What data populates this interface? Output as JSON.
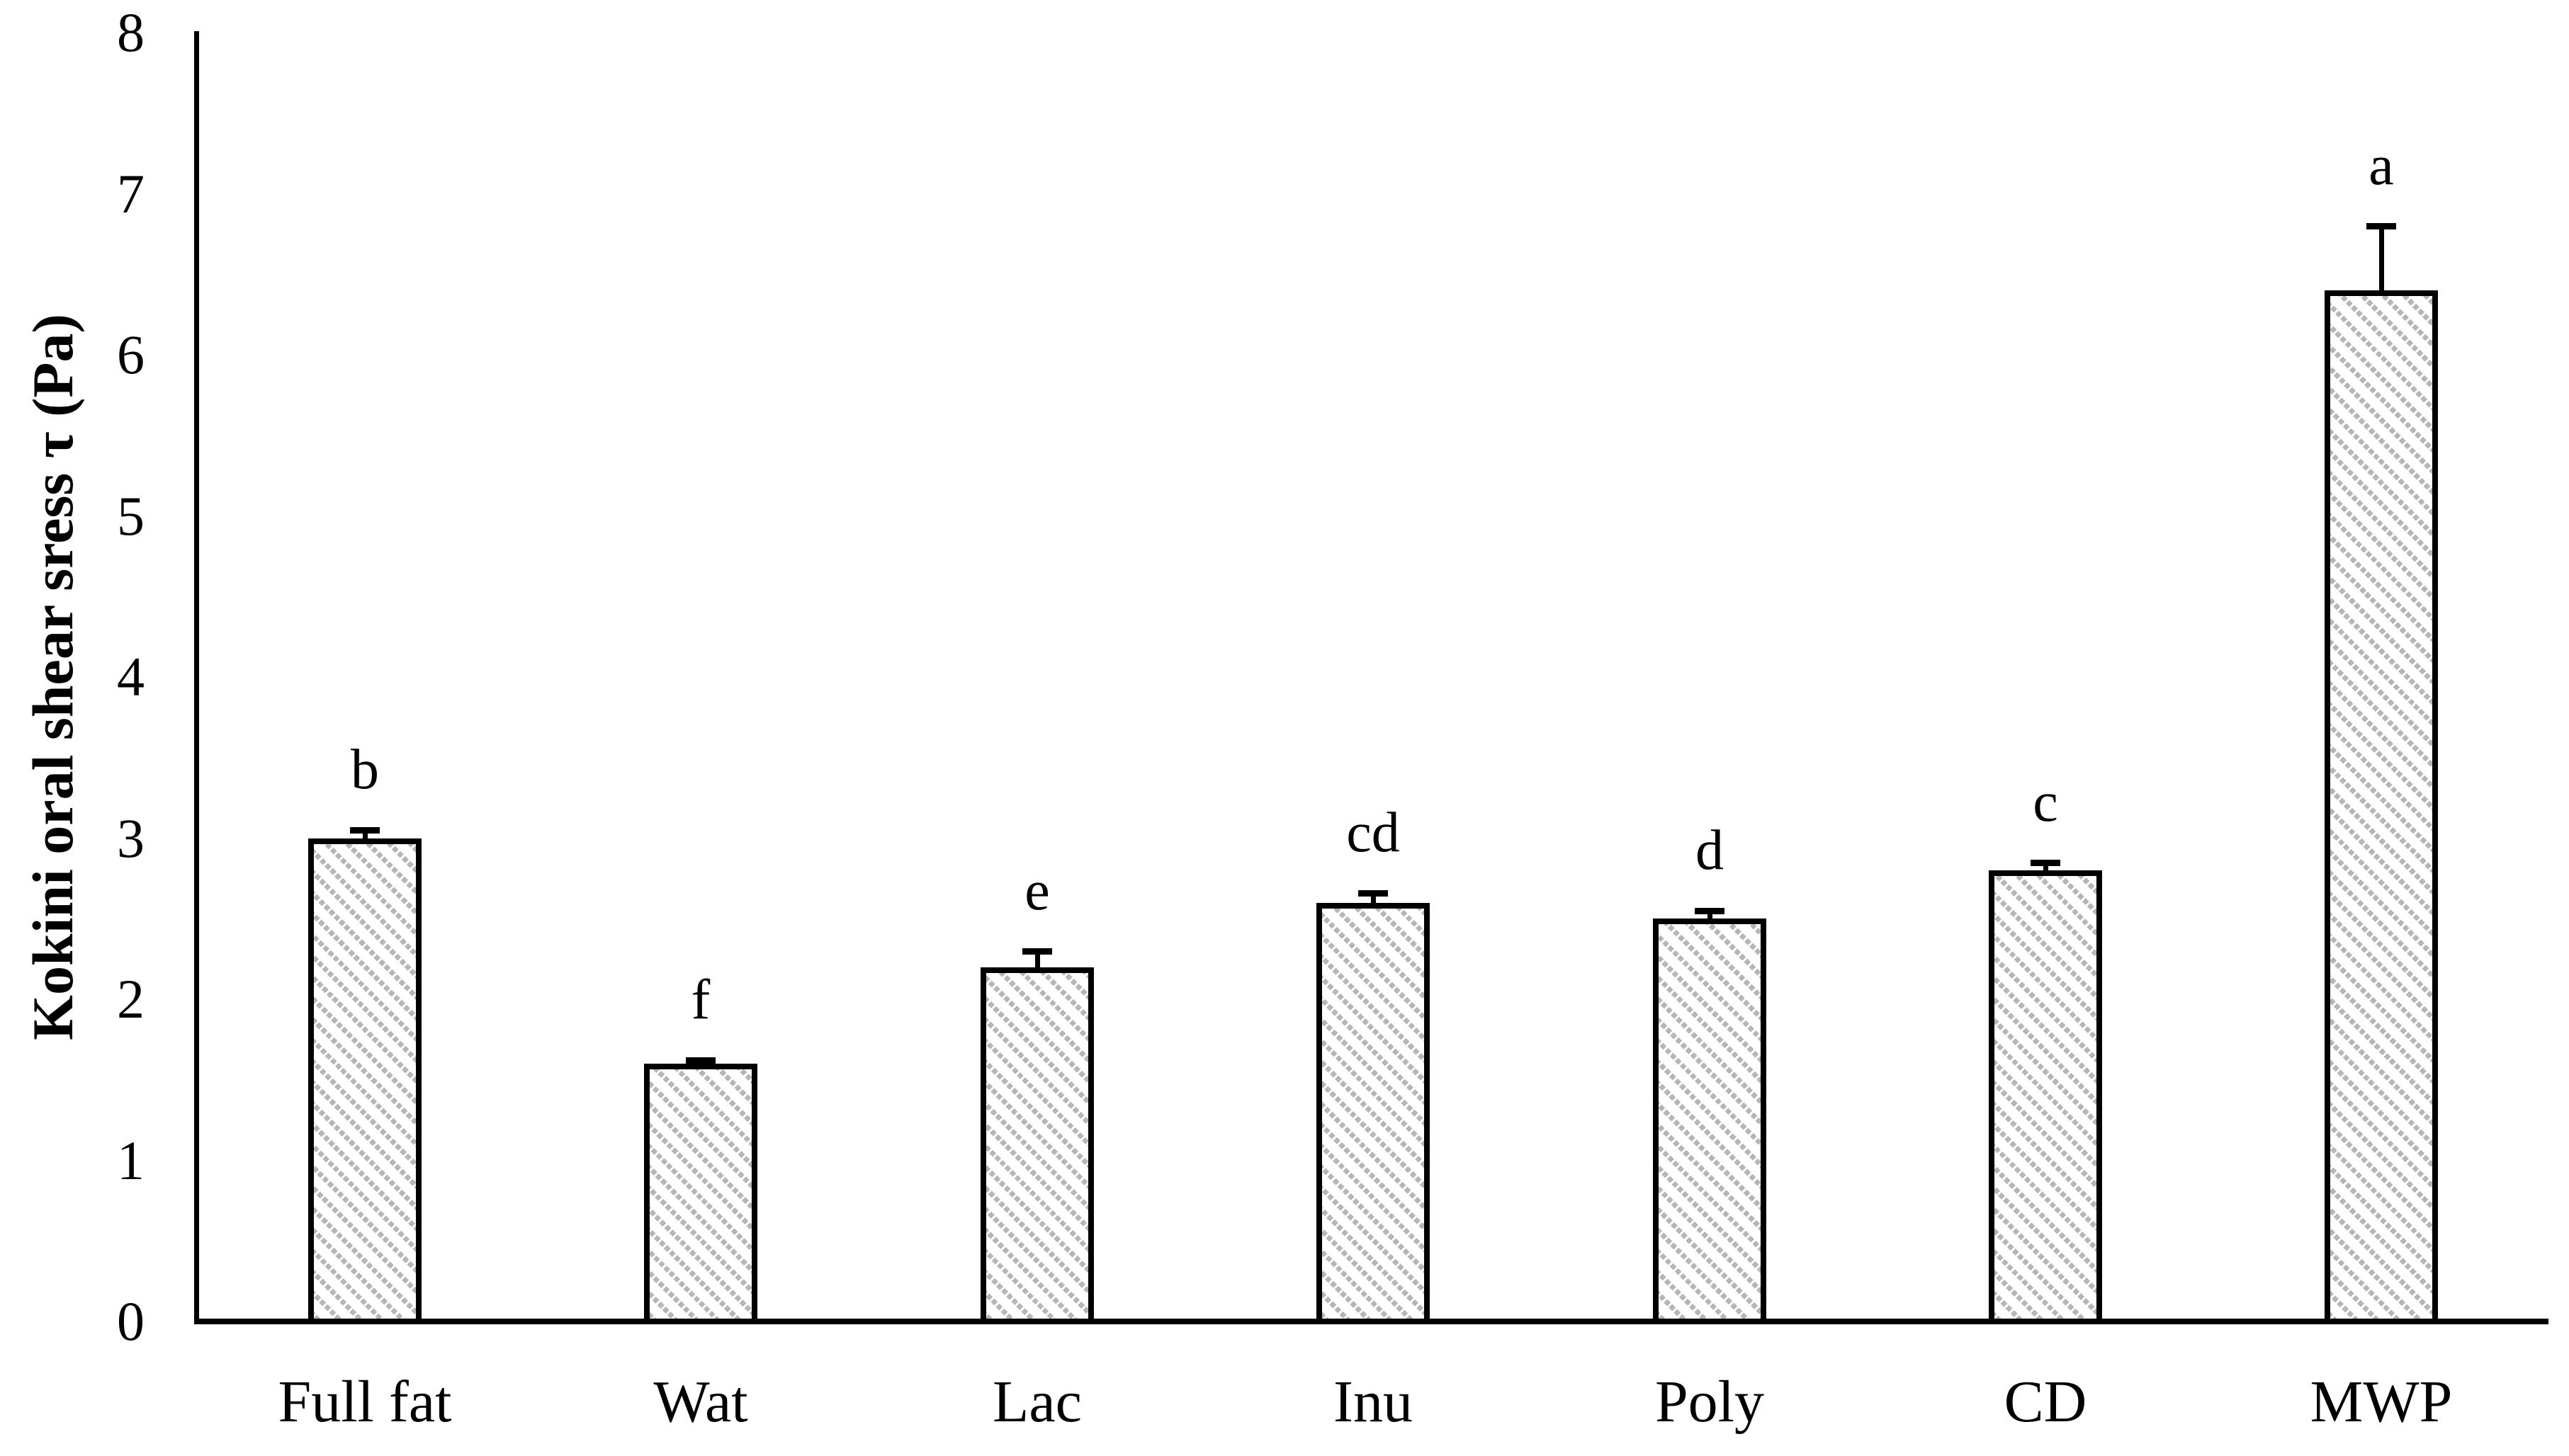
{
  "chart_data": {
    "type": "bar",
    "title": "",
    "ylabel": "Kokini oral shear sress τ (Pa)",
    "xlabel": "",
    "categories": [
      "Full fat",
      "Wat",
      "Lac",
      "Inu",
      "Poly",
      "CD",
      "MWP"
    ],
    "values": [
      3.0,
      1.6,
      2.2,
      2.6,
      2.5,
      2.8,
      6.4
    ],
    "error_plus": [
      0.05,
      0.02,
      0.1,
      0.06,
      0.05,
      0.05,
      0.4
    ],
    "significance_letters": [
      "b",
      "f",
      "e",
      "cd",
      "d",
      "c",
      "a"
    ],
    "yticks": [
      "0",
      "1",
      "2",
      "3",
      "4",
      "5",
      "6",
      "7",
      "8"
    ],
    "ylim": [
      0,
      8
    ],
    "grid": false,
    "legend_position": "none",
    "bar_fill_style": "dotted-diagonal-hatch",
    "hatch_color": "#b6b6b6",
    "bar_border_color": "#000000",
    "axis_color": "#000000"
  }
}
